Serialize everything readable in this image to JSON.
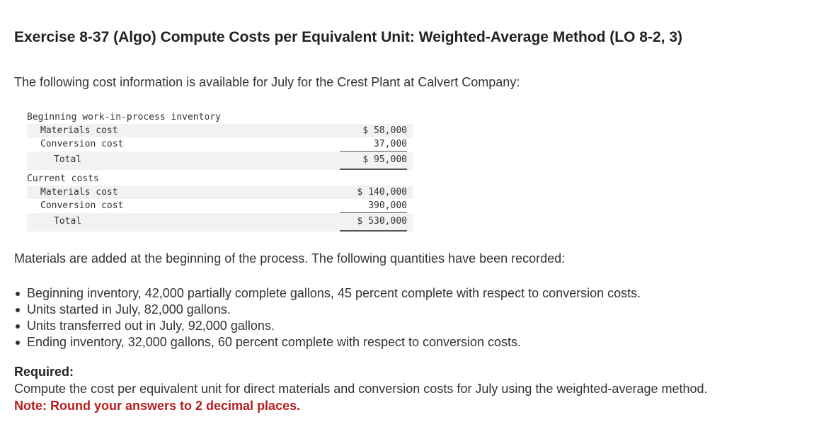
{
  "title": "Exercise 8-37 (Algo) Compute Costs per Equivalent Unit: Weighted-Average Method (LO 8-2, 3)",
  "intro": "The following cost information is available for July for the Crest Plant at Calvert Company:",
  "cost_table": {
    "beginning_header": "Beginning work-in-process inventory",
    "beginning_rows": [
      {
        "label": "Materials cost",
        "amount": "$ 58,000"
      },
      {
        "label": "Conversion cost",
        "amount": "37,000"
      }
    ],
    "beginning_total": {
      "label": "Total",
      "amount": "$ 95,000"
    },
    "current_header": "Current costs",
    "current_rows": [
      {
        "label": "Materials cost",
        "amount": "$ 140,000"
      },
      {
        "label": "Conversion cost",
        "amount": "390,000"
      }
    ],
    "current_total": {
      "label": "Total",
      "amount": "$ 530,000"
    }
  },
  "paragraph": "Materials are added at the beginning of the process. The following quantities have been recorded:",
  "bullets": [
    "Beginning inventory, 42,000 partially complete gallons, 45 percent complete with respect to conversion costs.",
    "Units started in July, 82,000 gallons.",
    "Units transferred out in July, 92,000 gallons.",
    "Ending inventory, 32,000 gallons, 60 percent complete with respect to conversion costs."
  ],
  "required_heading": "Required:",
  "required_text": "Compute the cost per equivalent unit for direct materials and conversion costs for July using the weighted-average method.",
  "note": "Note: Round your answers to 2 decimal places.",
  "colors": {
    "text": "#333333",
    "note": "#b91d1d",
    "row_shade": "#f2f2f2"
  }
}
